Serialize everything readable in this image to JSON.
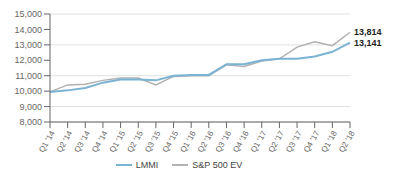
{
  "chart_data": {
    "type": "line",
    "categories": [
      "Q1 '14",
      "Q2 '14",
      "Q3 '14",
      "Q4 '14",
      "Q1 '15",
      "Q2 '15",
      "Q3 '15",
      "Q4 '15",
      "Q1 '16",
      "Q2 '16",
      "Q3 '16",
      "Q4 '16",
      "Q1 '17",
      "Q2 '17",
      "Q3 '17",
      "Q4 '17",
      "Q1 '18",
      "Q2 '18"
    ],
    "series": [
      {
        "name": "S&P 500 EV",
        "color": "#b0b0b0",
        "values": [
          9950,
          10400,
          10450,
          10700,
          10850,
          10850,
          10400,
          10950,
          11000,
          11000,
          11700,
          11600,
          11950,
          12100,
          12850,
          13200,
          12950,
          13814
        ]
      },
      {
        "name": "LMMI",
        "color": "#7ab3d3",
        "values": [
          9950,
          10050,
          10200,
          10550,
          10750,
          10750,
          10700,
          11000,
          11050,
          11050,
          11750,
          11750,
          12000,
          12100,
          12100,
          12250,
          12550,
          13141
        ]
      }
    ],
    "ylim": [
      8000,
      15000
    ],
    "yticks": [
      {
        "value": 8000,
        "label": "8,000"
      },
      {
        "value": 9000,
        "label": "9,000"
      },
      {
        "value": 10000,
        "label": "10,000"
      },
      {
        "value": 11000,
        "label": "11,000"
      },
      {
        "value": 12000,
        "label": "12,000"
      },
      {
        "value": 13000,
        "label": "13,000"
      },
      {
        "value": 14000,
        "label": "14,000"
      },
      {
        "value": 15000,
        "label": "15,000"
      }
    ],
    "annotations": [
      {
        "text": "13,814",
        "x": "Q2 '18",
        "y": 13814
      },
      {
        "text": "13,141",
        "x": "Q2 '18",
        "y": 13141
      }
    ],
    "grid": true,
    "legend": "bottom"
  }
}
